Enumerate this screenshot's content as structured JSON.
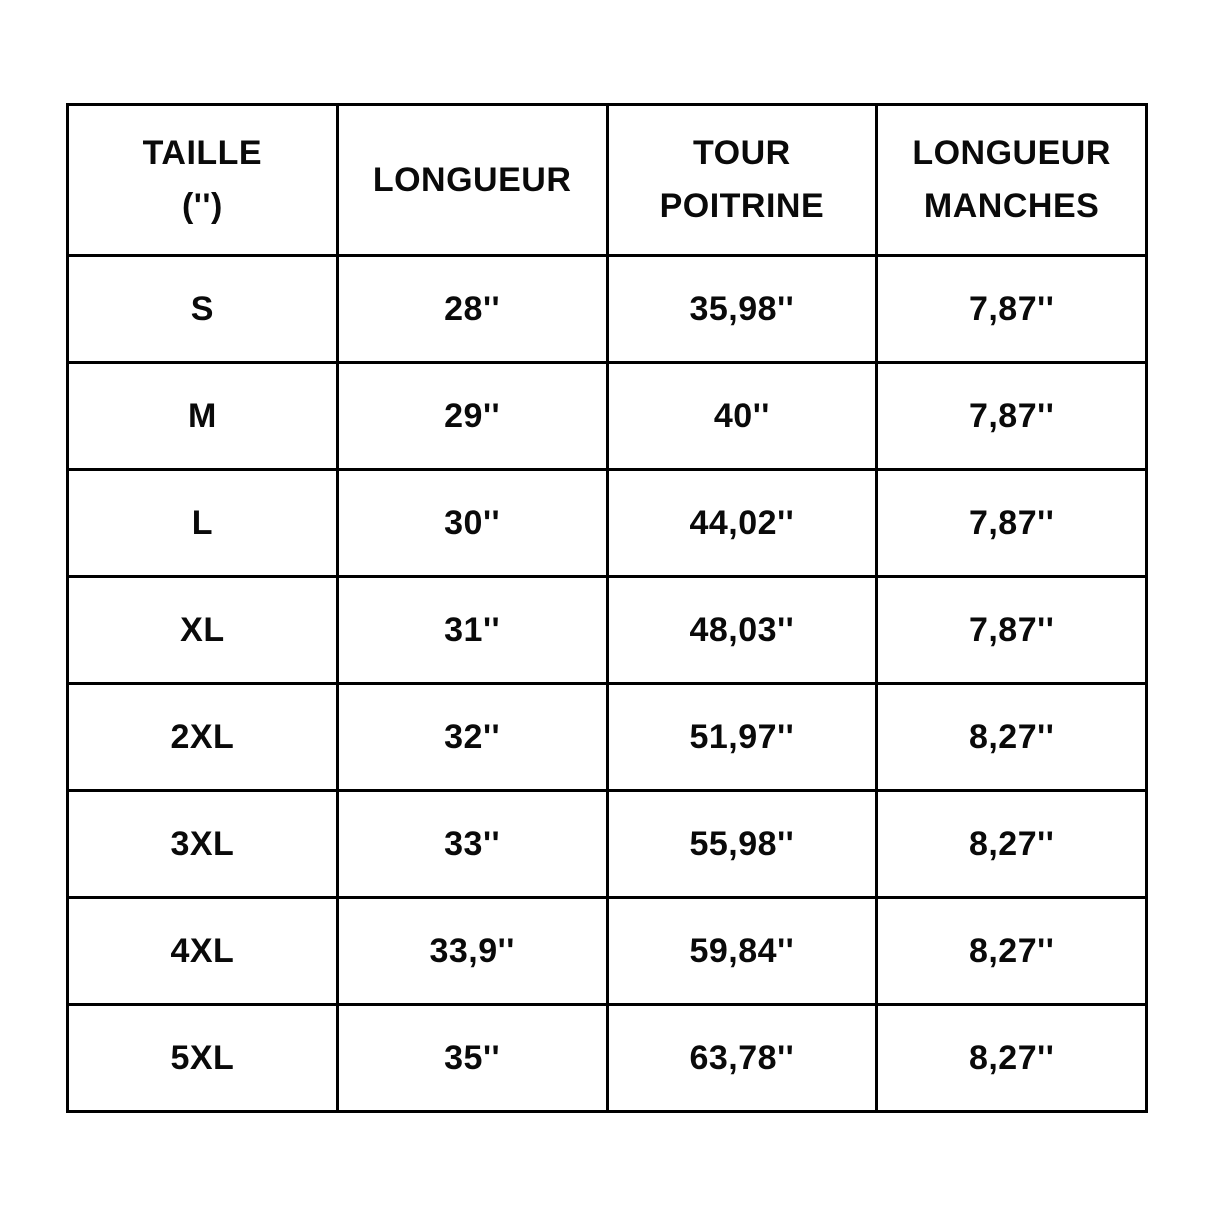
{
  "chart_data": {
    "type": "table",
    "title": "",
    "columns": [
      "TAILLE\n('')",
      "LONGUEUR",
      "TOUR\nPOITRINE",
      "LONGUEUR\nMANCHES"
    ],
    "columns_plain": [
      "TAILLE ('')",
      "LONGUEUR",
      "TOUR POITRINE",
      "LONGUEUR MANCHES"
    ],
    "unit": "inches",
    "rows": [
      [
        "S",
        "28''",
        "35,98''",
        "7,87''"
      ],
      [
        "M",
        "29''",
        "40''",
        "7,87''"
      ],
      [
        "L",
        "30''",
        "44,02''",
        "7,87''"
      ],
      [
        "XL",
        "31''",
        "48,03''",
        "7,87''"
      ],
      [
        "2XL",
        "32''",
        "51,97''",
        "8,27''"
      ],
      [
        "3XL",
        "33''",
        "55,98''",
        "8,27''"
      ],
      [
        "4XL",
        "33,9''",
        "59,84''",
        "8,27''"
      ],
      [
        "5XL",
        "35''",
        "63,78''",
        "8,27''"
      ]
    ],
    "colors": {
      "border": "#000000",
      "text": "#0a0a0a",
      "background": "#ffffff"
    }
  }
}
